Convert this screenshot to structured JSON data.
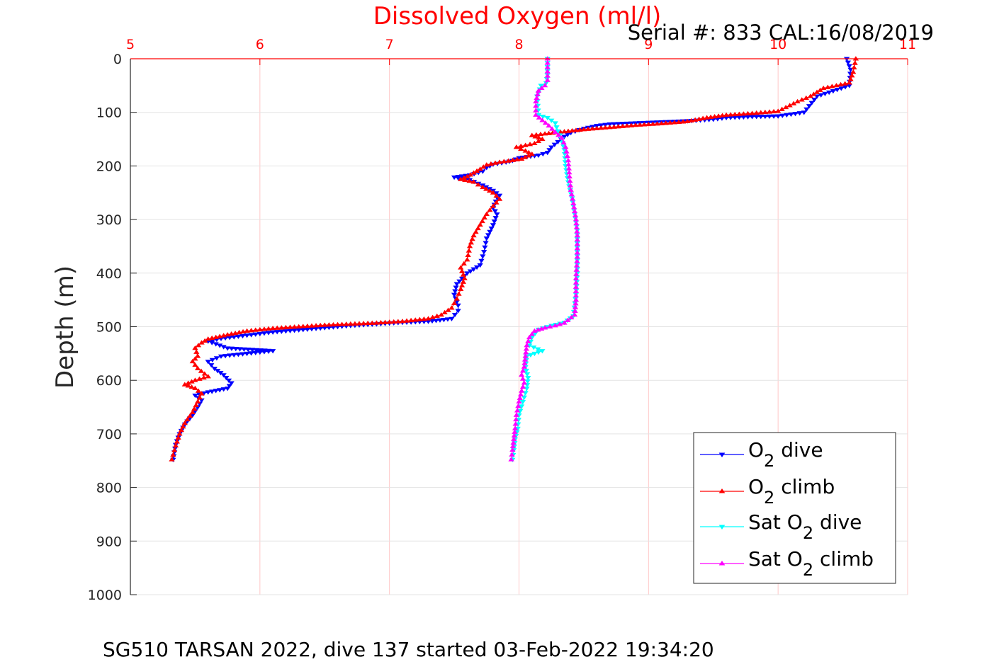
{
  "chart_data": {
    "type": "line",
    "title": "Dissolved Oxygen (ml/l)",
    "subtitle": "Serial #: 833  CAL:16/08/2019",
    "ylabel": "Depth (m)",
    "xlim": [
      5,
      11
    ],
    "ylim": [
      0,
      1000
    ],
    "y_reversed": true,
    "x_axis_position": "top",
    "xticks": [
      5,
      6,
      7,
      8,
      9,
      10,
      11
    ],
    "yticks": [
      0,
      100,
      200,
      300,
      400,
      500,
      600,
      700,
      800,
      900,
      1000
    ],
    "grid": true,
    "legend_position": "bottom-right",
    "caption": "SG510 TARSAN 2022, dive 137 started 03-Feb-2022 19:34:20",
    "series": [
      {
        "name": "O2 dive",
        "label_prefix": "O",
        "label_sub": "2",
        "label_suffix": " dive",
        "color": "#0000ff",
        "marker": "down-triangle",
        "points": [
          [
            10.53,
            0
          ],
          [
            10.56,
            20
          ],
          [
            10.55,
            50
          ],
          [
            10.3,
            70
          ],
          [
            10.2,
            100
          ],
          [
            10.0,
            107
          ],
          [
            9.8,
            108
          ],
          [
            9.6,
            110
          ],
          [
            9.5,
            113
          ],
          [
            9.3,
            116
          ],
          [
            9.1,
            118
          ],
          [
            8.9,
            120
          ],
          [
            8.7,
            122
          ],
          [
            8.6,
            125
          ],
          [
            8.5,
            130
          ],
          [
            8.4,
            138
          ],
          [
            8.35,
            145
          ],
          [
            8.3,
            155
          ],
          [
            8.25,
            165
          ],
          [
            8.22,
            175
          ],
          [
            8.15,
            180
          ],
          [
            8.0,
            185
          ],
          [
            7.95,
            190
          ],
          [
            7.9,
            193
          ],
          [
            7.8,
            197
          ],
          [
            7.75,
            203
          ],
          [
            7.72,
            210
          ],
          [
            7.62,
            217
          ],
          [
            7.5,
            221
          ],
          [
            7.62,
            226
          ],
          [
            7.72,
            236
          ],
          [
            7.8,
            246
          ],
          [
            7.85,
            255
          ],
          [
            7.82,
            266
          ],
          [
            7.8,
            278
          ],
          [
            7.83,
            290
          ],
          [
            7.8,
            310
          ],
          [
            7.75,
            335
          ],
          [
            7.73,
            360
          ],
          [
            7.7,
            385
          ],
          [
            7.6,
            400
          ],
          [
            7.52,
            420
          ],
          [
            7.5,
            440
          ],
          [
            7.53,
            460
          ],
          [
            7.53,
            470
          ],
          [
            7.48,
            485
          ],
          [
            7.3,
            490
          ],
          [
            7.1,
            492
          ],
          [
            6.9,
            495
          ],
          [
            6.7,
            498
          ],
          [
            6.5,
            502
          ],
          [
            6.3,
            506
          ],
          [
            6.1,
            510
          ],
          [
            5.9,
            516
          ],
          [
            5.7,
            522
          ],
          [
            5.6,
            527
          ],
          [
            5.75,
            540
          ],
          [
            6.1,
            545
          ],
          [
            5.7,
            555
          ],
          [
            5.6,
            565
          ],
          [
            5.65,
            578
          ],
          [
            5.72,
            590
          ],
          [
            5.78,
            605
          ],
          [
            5.75,
            615
          ],
          [
            5.6,
            622
          ],
          [
            5.5,
            628
          ],
          [
            5.55,
            637
          ],
          [
            5.52,
            650
          ],
          [
            5.48,
            665
          ],
          [
            5.42,
            682
          ],
          [
            5.38,
            700
          ],
          [
            5.35,
            720
          ],
          [
            5.33,
            748
          ]
        ]
      },
      {
        "name": "O2 climb",
        "label_prefix": "O",
        "label_sub": "2",
        "label_suffix": " climb",
        "color": "#ff0000",
        "marker": "up-triangle",
        "points": [
          [
            10.6,
            0
          ],
          [
            10.58,
            25
          ],
          [
            10.55,
            45
          ],
          [
            10.35,
            55
          ],
          [
            10.25,
            70
          ],
          [
            10.15,
            80
          ],
          [
            10.0,
            98
          ],
          [
            9.8,
            102
          ],
          [
            9.6,
            105
          ],
          [
            9.45,
            110
          ],
          [
            9.3,
            117
          ],
          [
            9.1,
            121
          ],
          [
            8.9,
            124
          ],
          [
            8.7,
            128
          ],
          [
            8.5,
            132
          ],
          [
            8.35,
            136
          ],
          [
            8.2,
            140
          ],
          [
            8.1,
            143
          ],
          [
            8.18,
            150
          ],
          [
            8.12,
            158
          ],
          [
            7.98,
            165
          ],
          [
            8.05,
            172
          ],
          [
            8.1,
            178
          ],
          [
            8.02,
            187
          ],
          [
            7.85,
            193
          ],
          [
            7.75,
            198
          ],
          [
            7.7,
            206
          ],
          [
            7.65,
            213
          ],
          [
            7.6,
            220
          ],
          [
            7.55,
            225
          ],
          [
            7.65,
            230
          ],
          [
            7.72,
            240
          ],
          [
            7.8,
            250
          ],
          [
            7.85,
            262
          ],
          [
            7.8,
            275
          ],
          [
            7.75,
            290
          ],
          [
            7.7,
            310
          ],
          [
            7.65,
            330
          ],
          [
            7.62,
            350
          ],
          [
            7.6,
            375
          ],
          [
            7.55,
            390
          ],
          [
            7.58,
            410
          ],
          [
            7.55,
            430
          ],
          [
            7.52,
            448
          ],
          [
            7.48,
            465
          ],
          [
            7.4,
            478
          ],
          [
            7.3,
            485
          ],
          [
            7.1,
            490
          ],
          [
            6.9,
            493
          ],
          [
            6.7,
            495
          ],
          [
            6.5,
            497
          ],
          [
            6.3,
            500
          ],
          [
            6.1,
            503
          ],
          [
            5.9,
            508
          ],
          [
            5.75,
            515
          ],
          [
            5.6,
            523
          ],
          [
            5.55,
            530
          ],
          [
            5.5,
            540
          ],
          [
            5.52,
            555
          ],
          [
            5.48,
            565
          ],
          [
            5.52,
            578
          ],
          [
            5.6,
            593
          ],
          [
            5.5,
            600
          ],
          [
            5.42,
            608
          ],
          [
            5.5,
            615
          ],
          [
            5.55,
            625
          ],
          [
            5.52,
            640
          ],
          [
            5.48,
            660
          ],
          [
            5.42,
            680
          ],
          [
            5.38,
            700
          ],
          [
            5.35,
            722
          ],
          [
            5.32,
            748
          ]
        ]
      },
      {
        "name": "Sat O2 dive",
        "label_prefix": "Sat O",
        "label_sub": "2",
        "label_suffix": " dive",
        "color": "#00ffff",
        "marker": "down-triangle",
        "points": [
          [
            8.22,
            0
          ],
          [
            8.22,
            30
          ],
          [
            8.21,
            45
          ],
          [
            8.17,
            50
          ],
          [
            8.14,
            70
          ],
          [
            8.15,
            105
          ],
          [
            8.22,
            110
          ],
          [
            8.28,
            120
          ],
          [
            8.3,
            135
          ],
          [
            8.33,
            150
          ],
          [
            8.35,
            170
          ],
          [
            8.36,
            200
          ],
          [
            8.38,
            230
          ],
          [
            8.41,
            260
          ],
          [
            8.43,
            290
          ],
          [
            8.45,
            320
          ],
          [
            8.45,
            360
          ],
          [
            8.45,
            400
          ],
          [
            8.44,
            440
          ],
          [
            8.42,
            480
          ],
          [
            8.35,
            492
          ],
          [
            8.25,
            498
          ],
          [
            8.15,
            505
          ],
          [
            8.1,
            520
          ],
          [
            8.08,
            535
          ],
          [
            8.18,
            545
          ],
          [
            8.06,
            555
          ],
          [
            8.05,
            575
          ],
          [
            8.07,
            595
          ],
          [
            8.06,
            615
          ],
          [
            8.03,
            640
          ],
          [
            8.0,
            665
          ],
          [
            7.99,
            690
          ],
          [
            7.97,
            710
          ],
          [
            7.96,
            730
          ],
          [
            7.95,
            748
          ]
        ]
      },
      {
        "name": "Sat O2 climb",
        "label_prefix": "Sat O",
        "label_sub": "2",
        "label_suffix": " climb",
        "color": "#ff00ff",
        "marker": "up-triangle",
        "points": [
          [
            8.22,
            0
          ],
          [
            8.22,
            40
          ],
          [
            8.2,
            50
          ],
          [
            8.15,
            60
          ],
          [
            8.13,
            80
          ],
          [
            8.13,
            105
          ],
          [
            8.18,
            115
          ],
          [
            8.23,
            125
          ],
          [
            8.28,
            137
          ],
          [
            8.33,
            148
          ],
          [
            8.36,
            165
          ],
          [
            8.38,
            190
          ],
          [
            8.39,
            220
          ],
          [
            8.4,
            245
          ],
          [
            8.42,
            270
          ],
          [
            8.44,
            300
          ],
          [
            8.45,
            330
          ],
          [
            8.45,
            370
          ],
          [
            8.44,
            410
          ],
          [
            8.44,
            450
          ],
          [
            8.43,
            478
          ],
          [
            8.35,
            493
          ],
          [
            8.28,
            498
          ],
          [
            8.2,
            502
          ],
          [
            8.12,
            508
          ],
          [
            8.08,
            520
          ],
          [
            8.06,
            535
          ],
          [
            8.05,
            555
          ],
          [
            8.04,
            575
          ],
          [
            8.02,
            590
          ],
          [
            8.04,
            605
          ],
          [
            8.02,
            620
          ],
          [
            8.0,
            640
          ],
          [
            7.98,
            665
          ],
          [
            7.97,
            690
          ],
          [
            7.96,
            710
          ],
          [
            7.95,
            730
          ],
          [
            7.94,
            748
          ]
        ]
      }
    ]
  }
}
